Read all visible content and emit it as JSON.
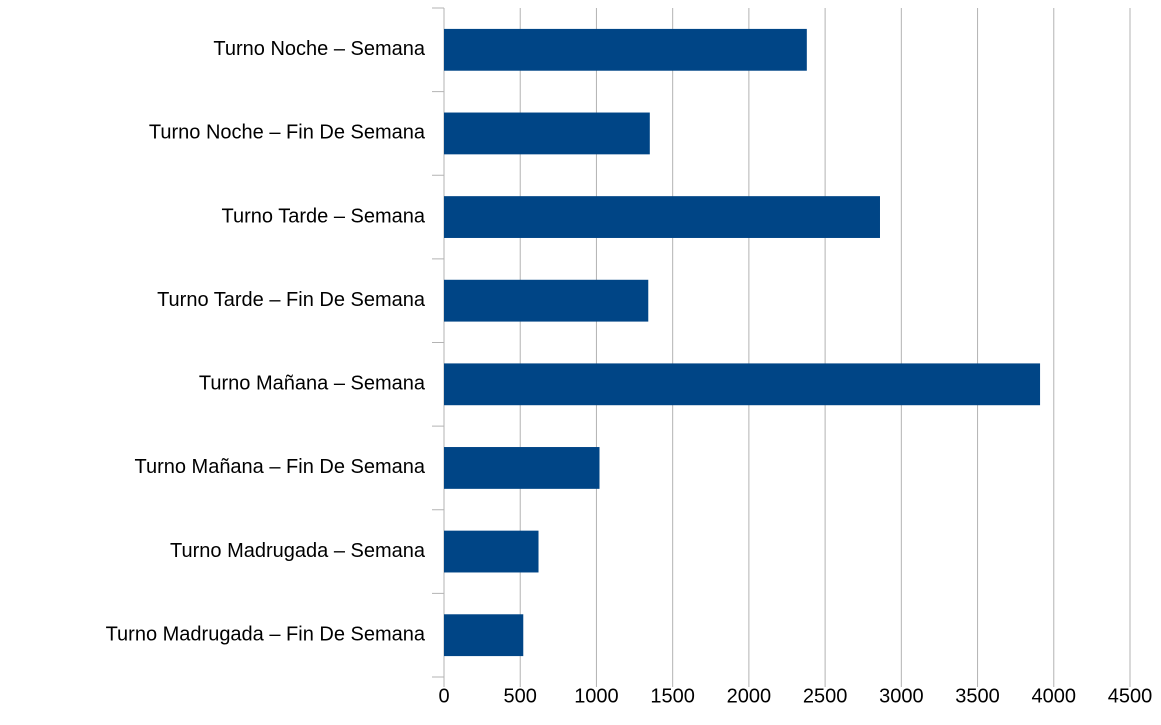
{
  "chart_data": {
    "type": "hbar",
    "categories": [
      "Turno Noche – Semana",
      "Turno Noche – Fin De Semana",
      "Turno Tarde – Semana",
      "Turno Tarde – Fin De Semana",
      "Turno Mañana – Semana",
      "Turno Mañana – Fin De Semana",
      "Turno Madrugada – Semana",
      "Turno Madrugada – Fin De Semana"
    ],
    "values": [
      2380,
      1350,
      2860,
      1340,
      3910,
      1020,
      620,
      520
    ],
    "color": "#004586",
    "xlim": [
      0,
      4500
    ],
    "xticks": [
      0,
      500,
      1000,
      1500,
      2000,
      2500,
      3000,
      3500,
      4000,
      4500
    ],
    "grid": true
  }
}
